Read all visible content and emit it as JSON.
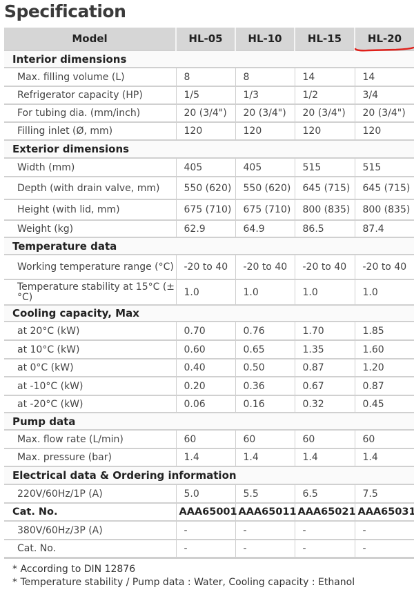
{
  "title": "Specification",
  "header": [
    "Model",
    "HL-05",
    "HL-10",
    "HL-15",
    "HL-20"
  ],
  "highlight_color": "#e0201a",
  "sections": [
    {
      "title": "Interior dimensions",
      "rows": [
        {
          "label": "Max. filling volume (L)",
          "values": [
            "8",
            "8",
            "14",
            "14"
          ]
        },
        {
          "label": "Refrigerator capacity (HP)",
          "values": [
            "1/5",
            "1/3",
            "1/2",
            "3/4"
          ]
        },
        {
          "label": "For tubing dia. (mm/inch)",
          "values": [
            "20 (3/4\")",
            "20 (3/4\")",
            "20 (3/4\")",
            "20 (3/4\")"
          ]
        },
        {
          "label": "Filling inlet (Ø, mm)",
          "values": [
            "120",
            "120",
            "120",
            "120"
          ]
        }
      ]
    },
    {
      "title": "Exterior dimensions",
      "rows": [
        {
          "label": "Width (mm)",
          "values": [
            "405",
            "405",
            "515",
            "515"
          ]
        },
        {
          "label": "Depth (with drain valve, mm)",
          "values": [
            "550 (620)",
            "550 (620)",
            "645 (715)",
            "645 (715)"
          ]
        },
        {
          "label": "Height (with lid, mm)",
          "values": [
            "675 (710)",
            "675 (710)",
            "800 (835)",
            "800 (835)"
          ]
        },
        {
          "label": "Weight (kg)",
          "values": [
            "62.9",
            "64.9",
            "86.5",
            "87.4"
          ]
        }
      ]
    },
    {
      "title": "Temperature data",
      "rows": [
        {
          "label": "Working temperature range (°C)",
          "values": [
            "-20 to 40",
            "-20 to 40",
            "-20 to 40",
            "-20 to 40"
          ]
        },
        {
          "label": "Temperature stability at 15°C (±°C)",
          "values": [
            "1.0",
            "1.0",
            "1.0",
            "1.0"
          ]
        }
      ]
    },
    {
      "title": "Cooling capacity, Max",
      "rows": [
        {
          "label": "at 20°C (kW)",
          "values": [
            "0.70",
            "0.76",
            "1.70",
            "1.85"
          ]
        },
        {
          "label": "at 10°C (kW)",
          "values": [
            "0.60",
            "0.65",
            "1.35",
            "1.60"
          ]
        },
        {
          "label": "at 0°C (kW)",
          "values": [
            "0.40",
            "0.50",
            "0.87",
            "1.20"
          ]
        },
        {
          "label": "at -10°C (kW)",
          "values": [
            "0.20",
            "0.36",
            "0.67",
            "0.87"
          ]
        },
        {
          "label": "at -20°C (kW)",
          "values": [
            "0.06",
            "0.16",
            "0.32",
            "0.45"
          ]
        }
      ]
    },
    {
      "title": "Pump data",
      "rows": [
        {
          "label": "Max. flow rate (L/min)",
          "values": [
            "60",
            "60",
            "60",
            "60"
          ]
        },
        {
          "label": "Max. pressure (bar)",
          "values": [
            "1.4",
            "1.4",
            "1.4",
            "1.4"
          ]
        }
      ]
    },
    {
      "title": "Electrical data & Ordering information",
      "rows": [
        {
          "label": "220V/60Hz/1P (A)",
          "values": [
            "5.0",
            "5.5",
            "6.5",
            "7.5"
          ]
        },
        {
          "label": "Cat. No.",
          "values": [
            "AAA65001",
            "AAA65011",
            "AAA65021",
            "AAA65031"
          ],
          "bold": true
        },
        {
          "label": "380V/60Hz/3P (A)",
          "values": [
            "-",
            "-",
            "-",
            "-"
          ]
        },
        {
          "label": "Cat. No.",
          "values": [
            "-",
            "-",
            "-",
            "-"
          ]
        }
      ]
    }
  ],
  "footnotes": [
    "* According to DIN 12876",
    "* Temperature stability / Pump data : Water, Cooling capacity : Ethanol"
  ]
}
